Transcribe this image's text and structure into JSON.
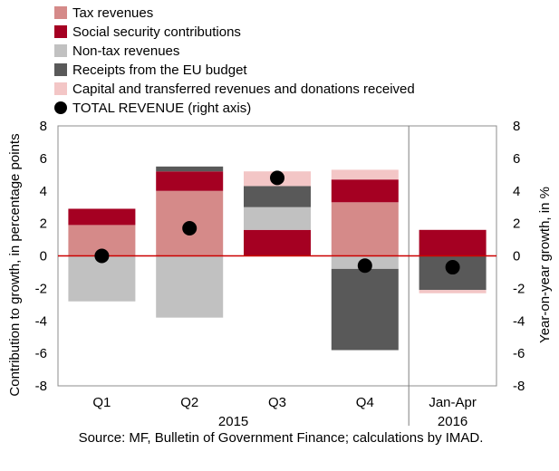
{
  "legend": [
    {
      "label": "Tax revenues",
      "color": "#d58a89",
      "shape": "square"
    },
    {
      "label": "Social security contributions",
      "color": "#a50022",
      "shape": "square"
    },
    {
      "label": "Non-tax revenues",
      "color": "#c1c1c1",
      "shape": "square"
    },
    {
      "label": "Receipts from the EU budget",
      "color": "#595959",
      "shape": "square"
    },
    {
      "label": "Capital and transferred revenues and donations received",
      "color": "#f3c6c6",
      "shape": "square"
    },
    {
      "label": "TOTAL REVENUE (right axis)",
      "color": "#000000",
      "shape": "dot"
    }
  ],
  "source": "Source: MF, Bulletin of Government Finance; calculations by IMAD.",
  "chart_data": {
    "type": "bar",
    "stacked": true,
    "categories": [
      "Q1",
      "Q2",
      "Q3",
      "Q4",
      "Jan-Apr"
    ],
    "group_labels": [
      "2015",
      "2016"
    ],
    "ylabel": "Contribution to growth, in percentage points",
    "y2label": "Year-on-year growth, in %",
    "ylim": [
      -8,
      8
    ],
    "y2lim": [
      -8,
      8
    ],
    "yticks": [
      -8,
      -6,
      -4,
      -2,
      0,
      2,
      4,
      6,
      8
    ],
    "zero_line_color": "#cc0000",
    "series": [
      {
        "name": "Tax revenues",
        "color": "#d58a89",
        "values": [
          1.9,
          4.0,
          0.0,
          3.3,
          0.0
        ]
      },
      {
        "name": "Social security contributions",
        "color": "#a50022",
        "values": [
          1.0,
          1.2,
          1.6,
          1.4,
          1.6
        ]
      },
      {
        "name": "Non-tax revenues",
        "color": "#c1c1c1",
        "values": [
          -2.8,
          -3.8,
          1.4,
          -0.8,
          0.0
        ]
      },
      {
        "name": "Receipts from the EU budget",
        "color": "#595959",
        "values": [
          0.0,
          0.3,
          1.3,
          -5.0,
          -2.1
        ]
      },
      {
        "name": "Capital and transferred revenues and donations received",
        "color": "#f3c6c6",
        "values": [
          0.0,
          0.0,
          0.9,
          0.6,
          -0.2
        ]
      }
    ],
    "total": {
      "name": "TOTAL REVENUE (right axis)",
      "color": "#000000",
      "values": [
        0.0,
        1.7,
        4.8,
        -0.6,
        -0.7
      ]
    }
  }
}
